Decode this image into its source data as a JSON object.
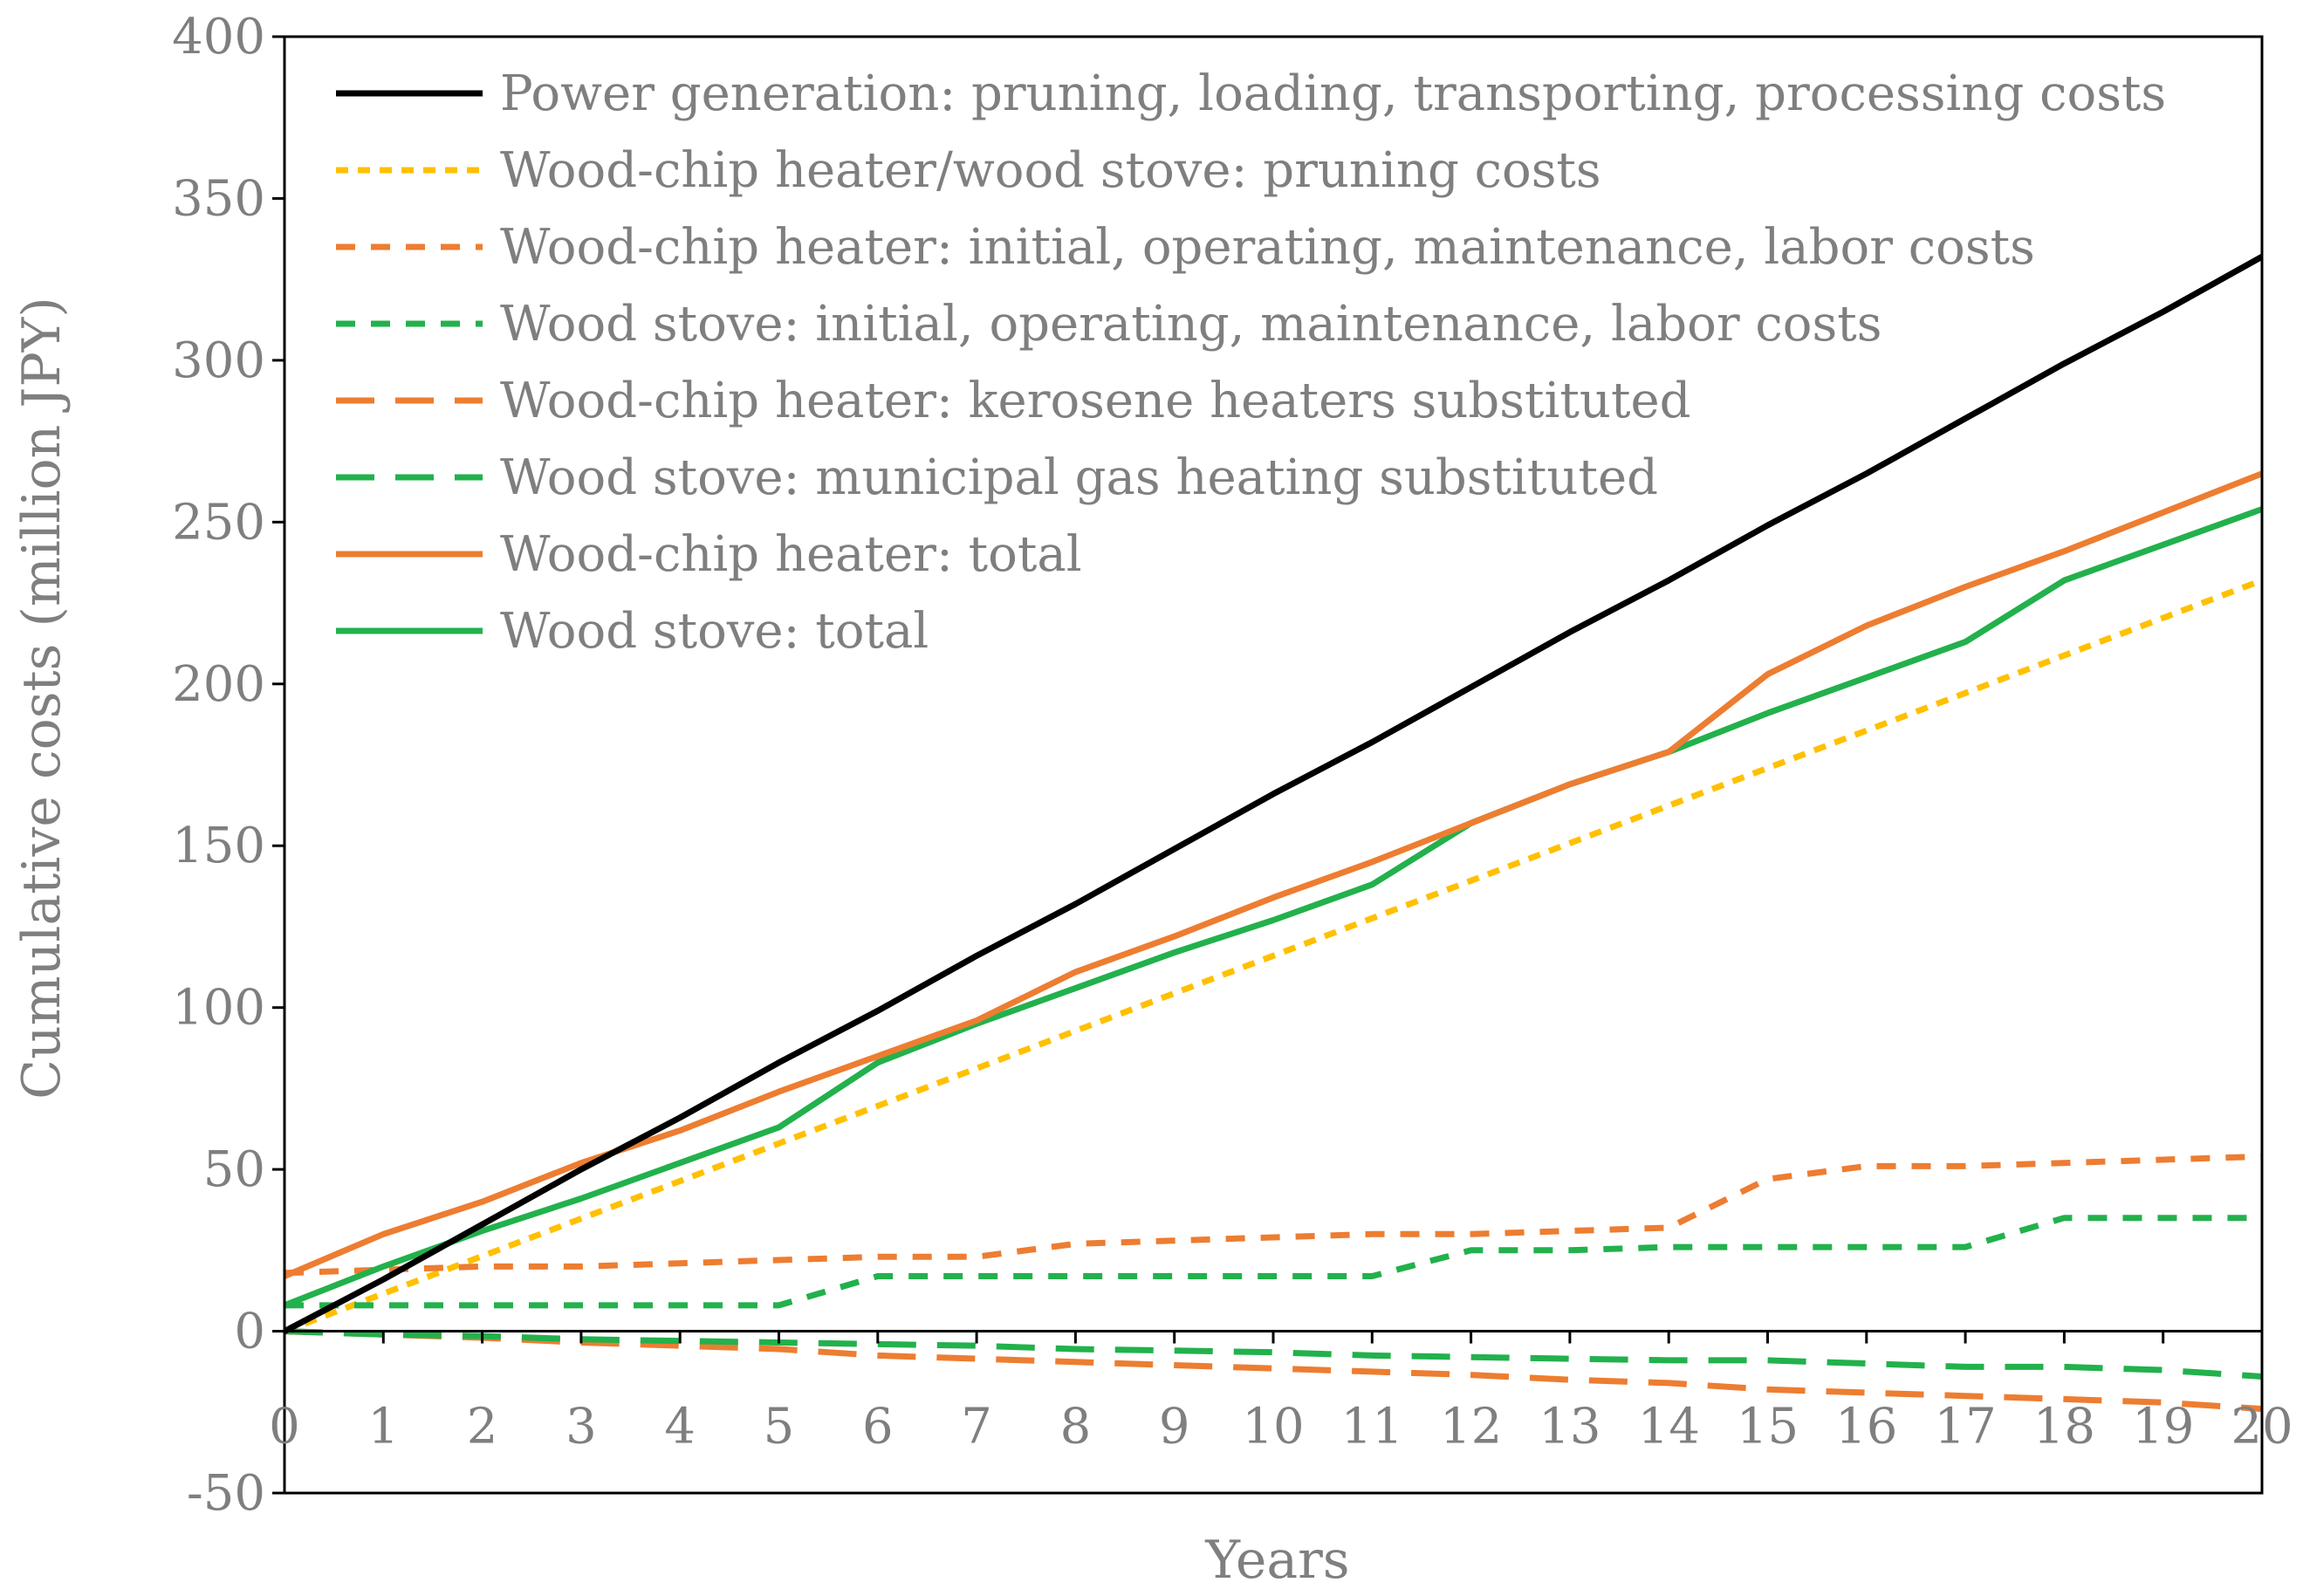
{
  "chart_data": {
    "type": "line",
    "title": "",
    "xlabel": "Years",
    "ylabel": "Cumulative costs (million JPY)",
    "xlim": [
      0,
      20
    ],
    "ylim": [
      -50,
      400
    ],
    "x_ticks": [
      0,
      1,
      2,
      3,
      4,
      5,
      6,
      7,
      8,
      9,
      10,
      11,
      12,
      13,
      14,
      15,
      16,
      17,
      18,
      19,
      20
    ],
    "y_ticks": [
      -50,
      0,
      50,
      100,
      150,
      200,
      250,
      300,
      350,
      400
    ],
    "grid": false,
    "legend_position": "top-left",
    "x": [
      0,
      1,
      2,
      3,
      4,
      5,
      6,
      7,
      8,
      9,
      10,
      11,
      12,
      13,
      14,
      15,
      16,
      17,
      18,
      19,
      20
    ],
    "series": [
      {
        "name": "Power generation: pruning, loading, transporting, processing costs",
        "color": "#000000",
        "style": "solid",
        "values": [
          0,
          16,
          33,
          50,
          66,
          83,
          99,
          116,
          132,
          149,
          166,
          182,
          199,
          216,
          232,
          249,
          265,
          282,
          299,
          315,
          332
        ]
      },
      {
        "name": "Wood-chip heater/wood stove: pruning costs",
        "color": "#ffc000",
        "style": "dotted",
        "values": [
          0,
          11.6,
          23.2,
          34.8,
          46.4,
          58,
          69.6,
          81.2,
          92.8,
          104.4,
          116,
          127.6,
          139.2,
          150.8,
          162.4,
          174,
          185.6,
          197.2,
          208.8,
          220.4,
          232
        ]
      },
      {
        "name": "Wood-chip heater: initial, operating, maintenance, labor costs",
        "color": "#ed7d31",
        "style": "dashed",
        "values": [
          18,
          19,
          20,
          20,
          21,
          22,
          23,
          23,
          27,
          28,
          29,
          30,
          30,
          31,
          32,
          47,
          51,
          51,
          52,
          53,
          54
        ]
      },
      {
        "name": "Wood stove: initial, operating, maintenance, labor costs",
        "color": "#22b14c",
        "style": "dashed",
        "values": [
          8,
          8,
          8,
          8,
          8,
          8,
          17,
          17,
          17,
          17,
          17,
          17,
          25,
          25,
          26,
          26,
          26,
          26,
          35,
          35,
          35
        ]
      },
      {
        "name": "Wood-chip heater: kerosene heaters substituted",
        "color": "#ed7d31",
        "style": "longdash",
        "values": [
          0,
          -1,
          -2,
          -3.5,
          -4.5,
          -5.5,
          -7.5,
          -8.5,
          -9.5,
          -10.5,
          -11.5,
          -12.5,
          -13.5,
          -15,
          -16,
          -18,
          -19,
          -20,
          -21,
          -22,
          -24
        ]
      },
      {
        "name": "Wood stove: municipal gas heating substituted",
        "color": "#22b14c",
        "style": "longdash",
        "values": [
          0,
          -1,
          -1.5,
          -2.5,
          -3,
          -3.5,
          -4,
          -4.5,
          -5.5,
          -6,
          -6.5,
          -7.5,
          -8,
          -8.5,
          -9,
          -9,
          -10,
          -11,
          -11,
          -12,
          -14
        ]
      },
      {
        "name": "Wood-chip heater: total",
        "color": "#ed7d31",
        "style": "solid",
        "values": [
          17,
          30,
          40,
          52,
          62,
          74,
          85,
          96,
          111,
          122,
          134,
          145,
          157,
          169,
          179,
          203,
          218,
          230,
          241,
          253,
          265
        ]
      },
      {
        "name": "Wood stove: total",
        "color": "#22b14c",
        "style": "solid",
        "values": [
          8,
          20,
          31,
          41,
          52,
          63,
          83,
          95,
          106,
          117,
          127,
          138,
          157,
          169,
          179,
          191,
          202,
          213,
          232,
          243,
          254
        ]
      }
    ]
  }
}
